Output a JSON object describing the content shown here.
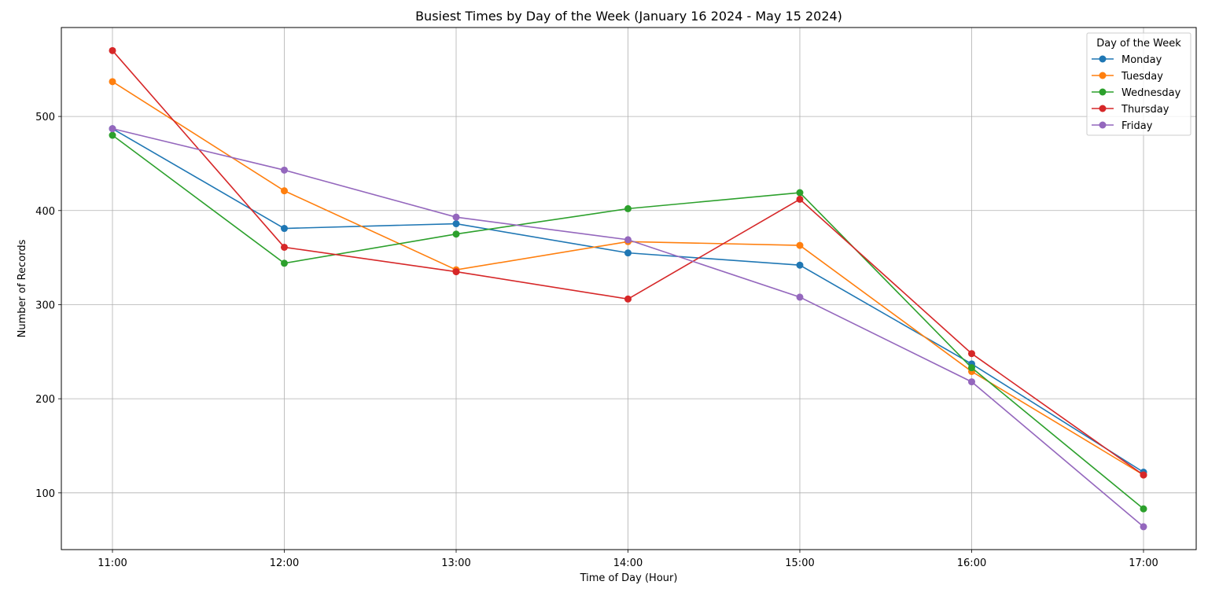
{
  "chart_data": {
    "type": "line",
    "title": "Busiest Times by Day of the Week (January 16 2024 - May 15 2024)",
    "xlabel": "Time of Day (Hour)",
    "ylabel": "Number of Records",
    "categories": [
      "11:00",
      "12:00",
      "13:00",
      "14:00",
      "15:00",
      "16:00",
      "17:00"
    ],
    "ylim": [
      39.7,
      594.5
    ],
    "yticks": [
      100,
      200,
      300,
      400,
      500
    ],
    "grid": true,
    "legend": {
      "title": "Day of the Week",
      "placement": "top-right"
    },
    "series": [
      {
        "name": "Monday",
        "color": "#1f77b4",
        "values": [
          487,
          381,
          386,
          355,
          342,
          237,
          122
        ]
      },
      {
        "name": "Tuesday",
        "color": "#ff7f0e",
        "values": [
          537,
          421,
          337,
          367,
          363,
          229,
          119
        ]
      },
      {
        "name": "Wednesday",
        "color": "#2ca02c",
        "values": [
          480,
          344,
          375,
          402,
          419,
          233,
          83
        ]
      },
      {
        "name": "Thursday",
        "color": "#d62728",
        "values": [
          570,
          361,
          335,
          306,
          412,
          248,
          119
        ]
      },
      {
        "name": "Friday",
        "color": "#9467bd",
        "values": [
          487,
          443,
          393,
          369,
          308,
          218,
          64
        ]
      }
    ]
  }
}
